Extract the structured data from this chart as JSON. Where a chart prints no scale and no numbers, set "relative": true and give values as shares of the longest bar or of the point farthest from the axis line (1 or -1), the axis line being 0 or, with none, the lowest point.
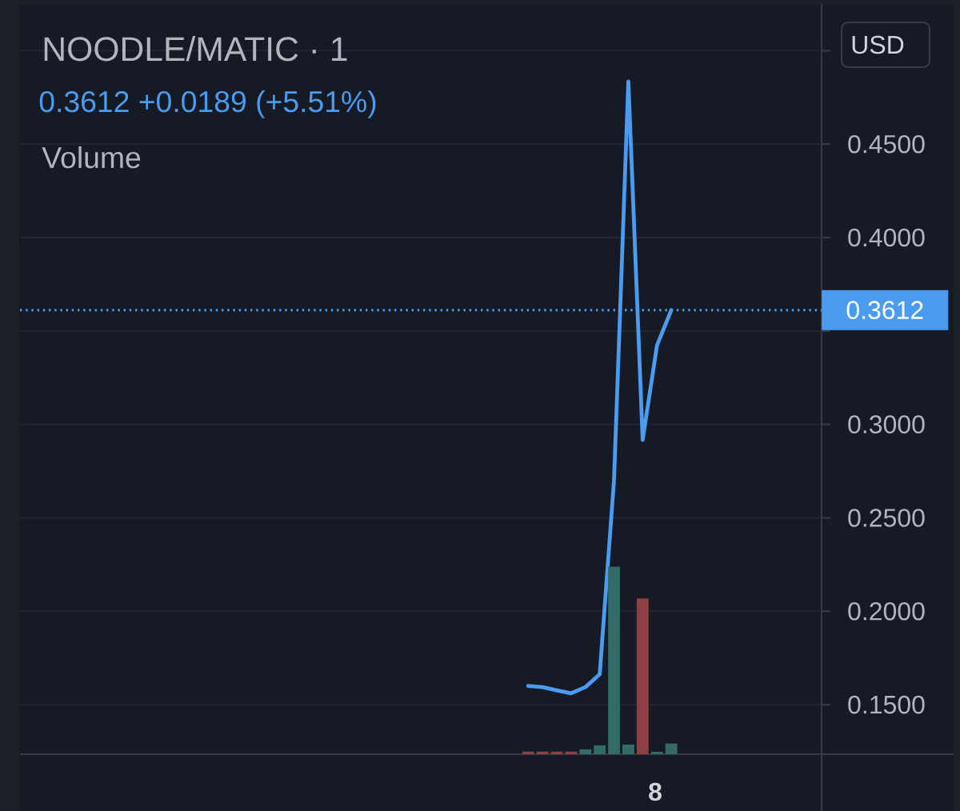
{
  "chart_data": [
    {
      "type": "line",
      "title": "NOODLE/MATIC · 1",
      "subtitle": "0.3612 +0.0189 (+5.51%)",
      "categories": [
        null,
        null,
        null,
        null,
        null,
        null,
        null,
        null,
        null,
        null,
        null,
        null,
        null,
        null,
        null,
        null,
        null,
        null,
        null,
        null,
        null,
        null,
        null,
        null,
        null,
        null,
        null,
        null,
        null,
        null,
        null,
        null,
        null,
        null,
        null,
        null,
        null,
        null,
        null,
        null,
        null,
        null,
        null,
        null,
        null,
        null,
        null,
        null,
        null,
        null,
        null,
        null,
        null,
        null,
        null,
        null
      ],
      "series": [
        {
          "color": "#4a9cf0",
          "values": [
            null,
            null,
            null,
            null,
            null,
            null,
            null,
            null,
            null,
            null,
            null,
            null,
            null,
            null,
            null,
            null,
            null,
            null,
            null,
            null,
            null,
            null,
            null,
            null,
            null,
            null,
            null,
            null,
            null,
            null,
            null,
            null,
            null,
            null,
            null,
            0.16,
            0.1594,
            0.1577,
            0.1561,
            0.1594,
            0.1663,
            0.2703,
            0.4835,
            0.2917,
            0.3423,
            0.3612,
            null,
            null,
            null,
            null,
            null,
            null,
            null,
            null,
            null,
            null
          ]
        }
      ],
      "ylim": [
        0.1235,
        0.525
      ],
      "yticks": [
        {
          "value": 0.15,
          "label": "0.1500"
        },
        {
          "value": 0.2,
          "label": "0.2000"
        },
        {
          "value": 0.25,
          "label": "0.2500"
        },
        {
          "value": 0.3,
          "label": "0.3000"
        },
        {
          "value": 0.35,
          "label": null
        },
        {
          "value": 0.4,
          "label": "0.4000"
        },
        {
          "value": 0.45,
          "label": "0.4500"
        },
        {
          "value": 0.5,
          "label": null
        }
      ],
      "grid": "y",
      "ref_lines": [
        {
          "axis": "y",
          "value": 0.3612,
          "label": "0.3612",
          "color": "#4a9cf0",
          "line_style": "dotted"
        }
      ],
      "annotations": [
        "USD",
        "Volume",
        "8"
      ],
      "tick_labels": "y"
    },
    {
      "type": "bar",
      "categories": [
        null,
        null,
        null,
        null,
        null,
        null,
        null,
        null,
        null,
        null,
        null,
        null,
        null,
        null,
        null,
        null,
        null,
        null,
        null,
        null,
        null,
        null,
        null,
        null,
        null,
        null,
        null,
        null,
        null,
        null,
        null,
        null,
        null,
        null,
        null,
        null,
        null,
        null,
        null,
        null,
        null,
        null,
        null,
        null,
        null,
        null,
        null,
        null,
        null,
        null,
        null,
        null,
        null,
        null,
        null,
        null
      ],
      "values": [
        null,
        null,
        null,
        null,
        null,
        null,
        null,
        null,
        null,
        null,
        null,
        null,
        null,
        null,
        null,
        null,
        null,
        null,
        null,
        null,
        null,
        null,
        null,
        null,
        null,
        null,
        null,
        null,
        null,
        null,
        null,
        null,
        null,
        null,
        null,
        0.014,
        0.014,
        0.014,
        0.014,
        0.026,
        0.047,
        1,
        0.051,
        0.83,
        0.013,
        0.057,
        null,
        null,
        null,
        null,
        null,
        null,
        null,
        null,
        null,
        null
      ],
      "colors": [
        null,
        null,
        null,
        null,
        null,
        null,
        null,
        null,
        null,
        null,
        null,
        null,
        null,
        null,
        null,
        null,
        null,
        null,
        null,
        null,
        null,
        null,
        null,
        null,
        null,
        null,
        null,
        null,
        null,
        null,
        null,
        null,
        null,
        null,
        null,
        "#8a4044",
        "#8a4044",
        "#8a4044",
        "#8a4044",
        "#356b67",
        "#356b67",
        "#356b67",
        "#356b67",
        "#8a4044",
        "#356b67",
        "#356b67",
        null,
        null,
        null,
        null,
        null,
        null,
        null,
        null,
        null,
        null
      ],
      "relative": true
    }
  ]
}
